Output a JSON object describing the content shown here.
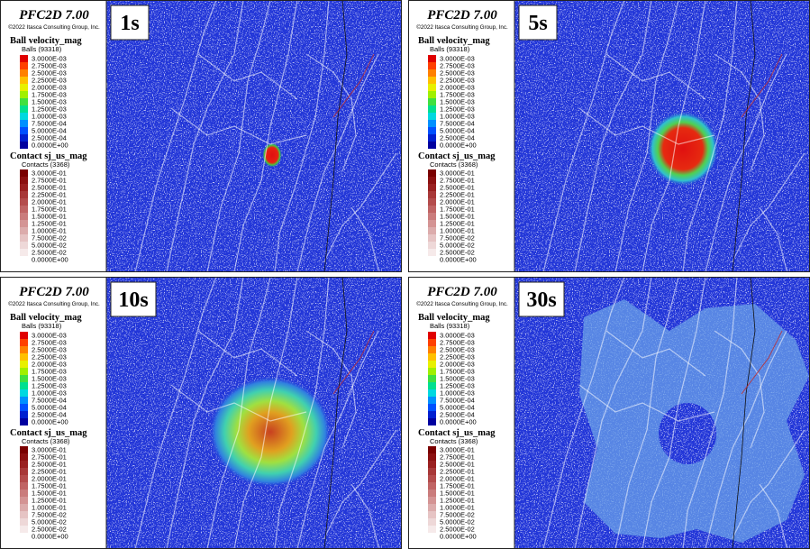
{
  "legend": {
    "software": "PFC2D 7.00",
    "copyright": "©2022 Itasca Consulting Group, Inc.",
    "ball_title": "Ball velocity_mag",
    "ball_count": "Balls (93318)",
    "ball_values": [
      "3.0000E-03",
      "2.7500E-03",
      "2.5000E-03",
      "2.2500E-03",
      "2.0000E-03",
      "1.7500E-03",
      "1.5000E-03",
      "1.2500E-03",
      "1.0000E-03",
      "7.5000E-04",
      "5.0000E-04",
      "2.5000E-04",
      "0.0000E+00"
    ],
    "contact_title": "Contact sj_us_mag",
    "contact_count": "Contacts (3368)",
    "contact_values": [
      "3.0000E-01",
      "2.7500E-01",
      "2.5000E-01",
      "2.2500E-01",
      "2.0000E-01",
      "1.7500E-01",
      "1.5000E-01",
      "1.2500E-01",
      "1.0000E-01",
      "7.5000E-02",
      "5.0000E-02",
      "2.5000E-02",
      "0.0000E+00"
    ]
  },
  "panels": [
    {
      "label": "1s"
    },
    {
      "label": "5s"
    },
    {
      "label": "10s"
    },
    {
      "label": "30s"
    }
  ]
}
